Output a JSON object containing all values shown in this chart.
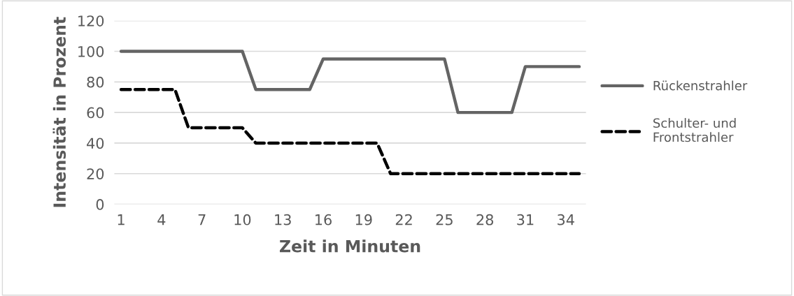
{
  "chart_data": {
    "type": "line",
    "xlabel": "Zeit in Minuten",
    "ylabel": "Intensität in Prozent",
    "categories": [
      "1",
      null,
      null,
      "4",
      null,
      null,
      "7",
      null,
      null,
      "10",
      null,
      null,
      "13",
      null,
      null,
      "16",
      null,
      null,
      "19",
      null,
      null,
      "22",
      null,
      null,
      "25",
      null,
      null,
      "28",
      null,
      null,
      "31",
      null,
      null,
      "34",
      null
    ],
    "series": [
      {
        "name": "Rückenstrahler",
        "color": "#646464",
        "line_style": "solid",
        "values": [
          100,
          100,
          100,
          100,
          100,
          100,
          100,
          100,
          100,
          100,
          75,
          75,
          75,
          75,
          75,
          95,
          95,
          95,
          95,
          95,
          95,
          95,
          95,
          95,
          95,
          60,
          60,
          60,
          60,
          60,
          90,
          90,
          90,
          90,
          90
        ]
      },
      {
        "name": "Schulter- und\nFrontstrahler",
        "color": "#000000",
        "line_style": "dashed",
        "values": [
          75,
          75,
          75,
          75,
          75,
          50,
          50,
          50,
          50,
          50,
          40,
          40,
          40,
          40,
          40,
          40,
          40,
          40,
          40,
          40,
          20,
          20,
          20,
          20,
          20,
          20,
          20,
          20,
          20,
          20,
          20,
          20,
          20,
          20,
          20
        ]
      }
    ],
    "ylim": [
      0,
      120
    ],
    "yticks": [
      0,
      20,
      40,
      60,
      80,
      100,
      120
    ],
    "grid": "y",
    "legend": "right",
    "marker": "none"
  }
}
